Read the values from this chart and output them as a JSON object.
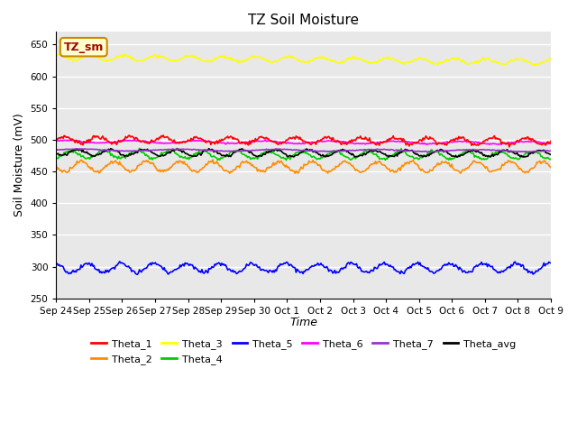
{
  "title": "TZ Soil Moisture",
  "xlabel": "Time",
  "ylabel": "Soil Moisture (mV)",
  "ylim": [
    250,
    670
  ],
  "yticks": [
    250,
    300,
    350,
    400,
    450,
    500,
    550,
    600,
    650
  ],
  "bg_color": "#e8e8e8",
  "grid_color": "white",
  "series_params": {
    "Theta_1": {
      "color": "#ff0000",
      "base": 500,
      "amp": 5,
      "trend": -0.15,
      "period": 1.0,
      "phase": 0.0,
      "noise": 1.5
    },
    "Theta_2": {
      "color": "#ff8c00",
      "base": 458,
      "amp": 8,
      "trend": -0.05,
      "period": 1.0,
      "phase": 0.5,
      "noise": 1.5
    },
    "Theta_3": {
      "color": "#ffff00",
      "base": 630,
      "amp": 4,
      "trend": -0.5,
      "period": 1.0,
      "phase": 0.2,
      "noise": 1.0
    },
    "Theta_4": {
      "color": "#00cc00",
      "base": 477,
      "amp": 6,
      "trend": -0.1,
      "period": 1.0,
      "phase": 0.8,
      "noise": 1.2
    },
    "Theta_5": {
      "color": "#0000ff",
      "base": 298,
      "amp": 7,
      "trend": 0.0,
      "period": 1.0,
      "phase": 0.3,
      "noise": 1.5
    },
    "Theta_6": {
      "color": "#ff00ff",
      "base": 497,
      "amp": 2,
      "trend": -0.12,
      "period": 2.0,
      "phase": 0.1,
      "noise": 0.5
    },
    "Theta_7": {
      "color": "#9933cc",
      "base": 484,
      "amp": 1.5,
      "trend": -0.08,
      "period": 3.0,
      "phase": 0.0,
      "noise": 0.3
    },
    "Theta_avg": {
      "color": "#000000",
      "base": 480,
      "amp": 5,
      "trend": -0.12,
      "period": 1.0,
      "phase": 0.6,
      "noise": 1.0
    }
  },
  "n_points": 500,
  "tick_labels": [
    "Sep 24",
    "Sep 25",
    "Sep 26",
    "Sep 27",
    "Sep 28",
    "Sep 29",
    "Sep 30",
    "Oct 1",
    "Oct 2",
    "Oct 3",
    "Oct 4",
    "Oct 5",
    "Oct 6",
    "Oct 7",
    "Oct 8",
    "Oct 9"
  ],
  "label_box": "TZ_sm",
  "label_box_bg": "#ffffcc",
  "label_box_border": "#cc8800",
  "legend_row1": [
    [
      "Theta_1",
      "#ff0000"
    ],
    [
      "Theta_2",
      "#ff8c00"
    ],
    [
      "Theta_3",
      "#ffff00"
    ],
    [
      "Theta_4",
      "#00cc00"
    ],
    [
      "Theta_5",
      "#0000ff"
    ],
    [
      "Theta_6",
      "#ff00ff"
    ]
  ],
  "legend_row2": [
    [
      "Theta_7",
      "#9933cc"
    ],
    [
      "Theta_avg",
      "#000000"
    ]
  ]
}
